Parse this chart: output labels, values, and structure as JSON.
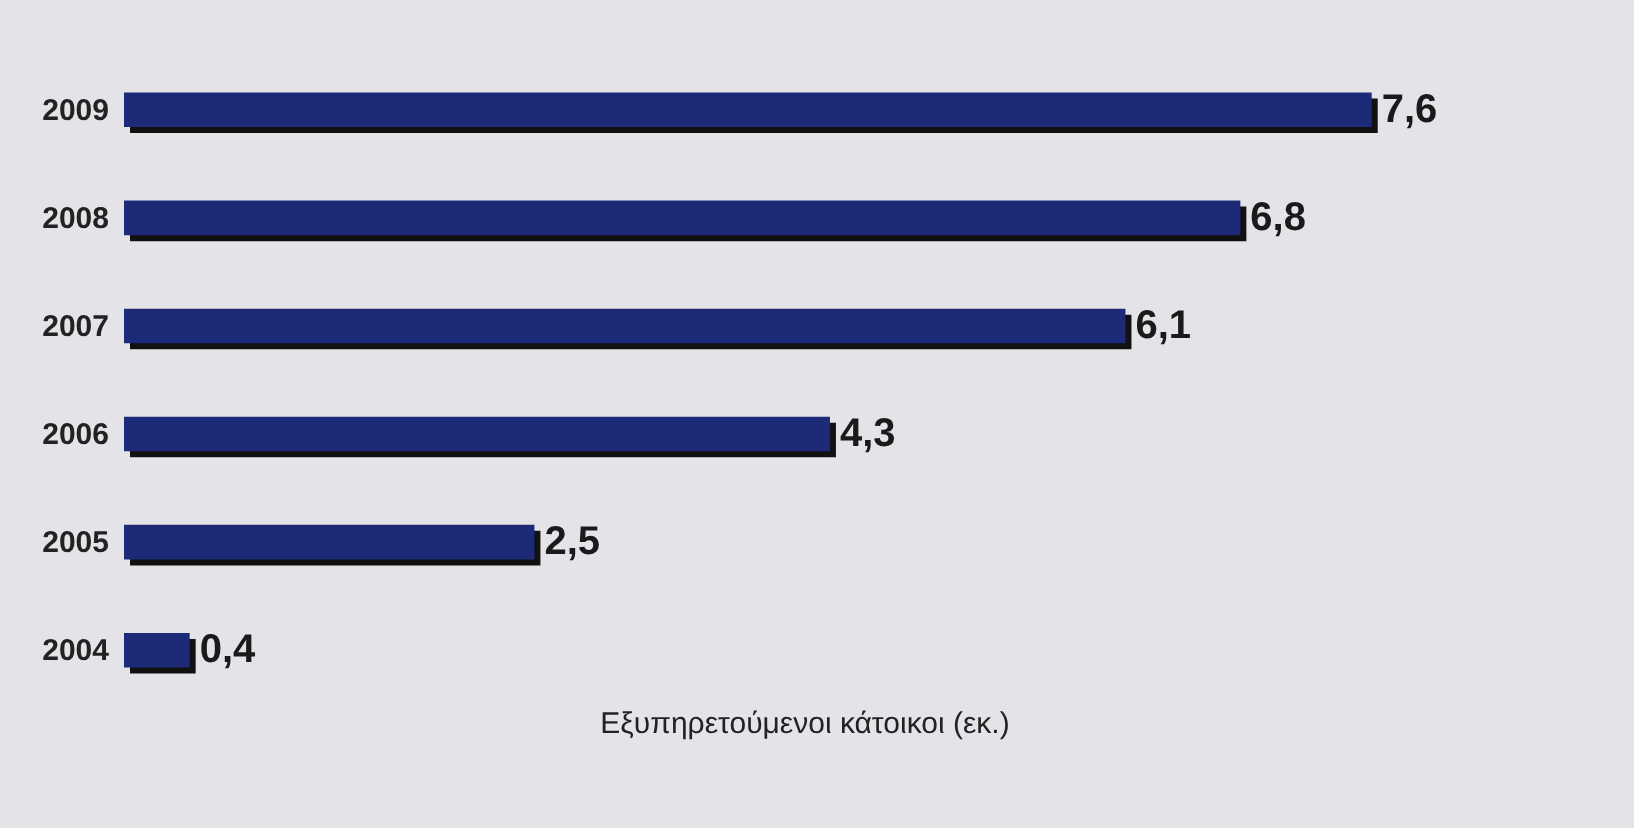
{
  "chart_data": {
    "type": "bar",
    "orientation": "horizontal",
    "categories": [
      "2009",
      "2008",
      "2007",
      "2006",
      "2005",
      "2004"
    ],
    "values": [
      7.6,
      6.8,
      6.1,
      4.3,
      2.5,
      0.4
    ],
    "color": "#1c2a78",
    "value_labels": [
      "7,6",
      "6,8",
      "6,1",
      "4,3",
      "2,5",
      "0,4"
    ],
    "xlabel": "Εξυπηρετούμενοι κάτοικοι (εκ.)",
    "tick_labels": "y"
  }
}
